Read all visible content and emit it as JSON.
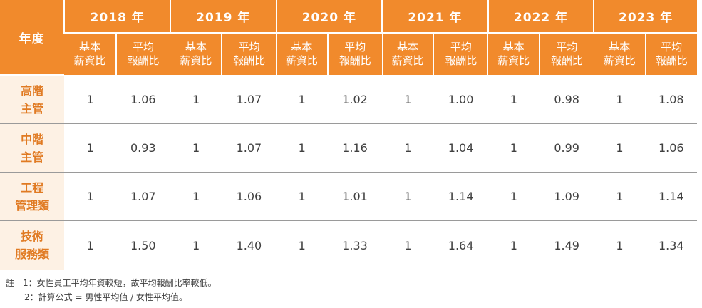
{
  "table": {
    "corner_label": "年度",
    "years": [
      "2018 年",
      "2019 年",
      "2020 年",
      "2021 年",
      "2022 年",
      "2023 年"
    ],
    "sub_headers": [
      "基本\n薪資比",
      "平均\n報酬比"
    ],
    "rows": [
      {
        "label": "高階\n主管",
        "values": [
          "1",
          "1.06",
          "1",
          "1.07",
          "1",
          "1.02",
          "1",
          "1.00",
          "1",
          "0.98",
          "1",
          "1.08"
        ]
      },
      {
        "label": "中階\n主管",
        "values": [
          "1",
          "0.93",
          "1",
          "1.07",
          "1",
          "1.16",
          "1",
          "1.04",
          "1",
          "0.99",
          "1",
          "1.06"
        ]
      },
      {
        "label": "工程\n管理類",
        "values": [
          "1",
          "1.07",
          "1",
          "1.06",
          "1",
          "1.01",
          "1",
          "1.14",
          "1",
          "1.09",
          "1",
          "1.14"
        ]
      },
      {
        "label": "技術\n服務類",
        "values": [
          "1",
          "1.50",
          "1",
          "1.40",
          "1",
          "1.33",
          "1",
          "1.64",
          "1",
          "1.49",
          "1",
          "1.34"
        ]
      }
    ]
  },
  "notes": {
    "note1": "註　1：女性員工平均年資較短，故平均報酬比率較低。",
    "note2": "2：計算公式 = 男性平均值 / 女性平均值。"
  },
  "colors": {
    "header_bg": "#f18a2c",
    "label_bg": "#fdf1e4",
    "label_text": "#e07a22"
  }
}
